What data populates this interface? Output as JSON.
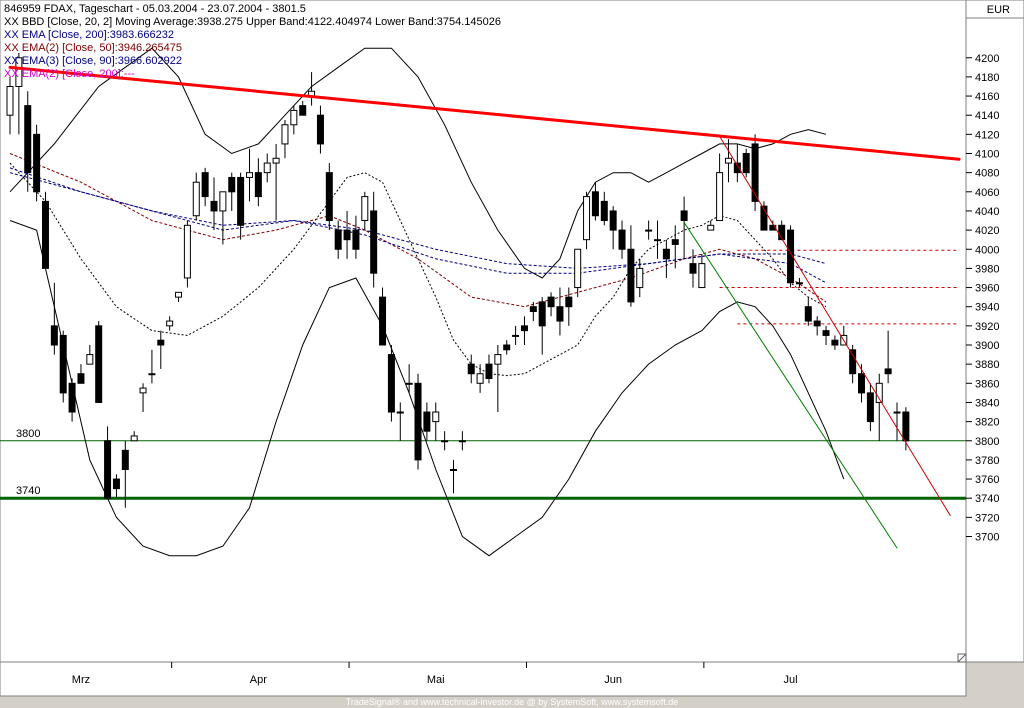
{
  "header": {
    "lines": [
      {
        "text": "846959  FDAX, Tageschart - 05.03.2004 - 23.07.2004 - 3801.5",
        "color": "#000000"
      },
      {
        "text": "XX BBD [Close, 20, 2] Moving Average:3938.275 Upper Band:4122.404974 Lower Band:3754.145026",
        "color": "#000000"
      },
      {
        "text": "XX EMA [Close, 200]:3983.666232",
        "color": "#000080"
      },
      {
        "text": "XX EMA(2) [Close, 50]:3946.265475",
        "color": "#800000"
      },
      {
        "text": "XX EMA(3) [Close, 90]:3966.602922",
        "color": "#000080"
      },
      {
        "text": "XX EMA(2) [Close, 200]:---",
        "color": "#cc00cc"
      }
    ]
  },
  "currency": "EUR",
  "footer": "TradeSignal® and www.technical-investor.de @ by  SystemSoft, www.systemsoft.de",
  "chart_data": {
    "type": "candlestick",
    "ylim": [
      3680,
      4230
    ],
    "y_ticks": [
      3700,
      3720,
      3740,
      3760,
      3780,
      3800,
      3820,
      3840,
      3860,
      3880,
      3900,
      3920,
      3940,
      3960,
      3980,
      4000,
      4020,
      4040,
      4060,
      4080,
      4100,
      4120,
      4140,
      4160,
      4180,
      4200
    ],
    "x_labels": [
      {
        "label": "Mrz",
        "bar": 8
      },
      {
        "label": "Apr",
        "bar": 28
      },
      {
        "label": "Mai",
        "bar": 48
      },
      {
        "label": "Jun",
        "bar": 68
      },
      {
        "label": "Jul",
        "bar": 88
      }
    ],
    "month_boundaries": [
      18,
      38,
      58,
      78
    ],
    "horizontal_lines": [
      {
        "value": 3800,
        "label": "3800",
        "color": "#006400",
        "width": 1
      },
      {
        "value": 3740,
        "label": "3740",
        "color": "#006400",
        "width": 3
      }
    ],
    "dashed_levels": [
      {
        "value": 3999,
        "from_bar": 82,
        "to_bar": 107
      },
      {
        "value": 3960,
        "from_bar": 80,
        "to_bar": 107
      },
      {
        "value": 3922,
        "from_bar": 82,
        "to_bar": 107
      }
    ],
    "trendlines": [
      {
        "from": [
          0,
          4190
        ],
        "to": [
          107,
          4094
        ],
        "color": "#ff0000",
        "width": 3
      },
      {
        "from": [
          80,
          4118
        ],
        "to": [
          106,
          3722
        ],
        "color": "#cc0000",
        "width": 1
      },
      {
        "from": [
          76,
          4028
        ],
        "to": [
          100,
          3688
        ],
        "color": "#008000",
        "width": 1
      }
    ],
    "candles": [
      [
        4140,
        4180,
        4120,
        4170
      ],
      [
        4170,
        4205,
        4120,
        4200
      ],
      [
        4150,
        4165,
        4060,
        4080
      ],
      [
        4120,
        4130,
        4050,
        4060
      ],
      [
        4050,
        4060,
        3980,
        3980
      ],
      [
        3920,
        3965,
        3890,
        3900
      ],
      [
        3910,
        3915,
        3840,
        3850
      ],
      [
        3860,
        3865,
        3820,
        3830
      ],
      [
        3870,
        3880,
        3860,
        3860
      ],
      [
        3880,
        3900,
        3880,
        3890
      ],
      [
        3920,
        3925,
        3840,
        3840
      ],
      [
        3800,
        3815,
        3740,
        3740
      ],
      [
        3760,
        3765,
        3740,
        3750
      ],
      [
        3790,
        3800,
        3730,
        3770
      ],
      [
        3800,
        3810,
        3800,
        3805
      ],
      [
        3850,
        3860,
        3830,
        3855
      ],
      [
        3870,
        3895,
        3860,
        3870
      ],
      [
        3905,
        3915,
        3875,
        3900
      ],
      [
        3920,
        3930,
        3915,
        3925
      ],
      [
        3950,
        3955,
        3945,
        3955
      ],
      [
        3970,
        4030,
        3960,
        4025
      ],
      [
        4035,
        4080,
        4030,
        4070
      ],
      [
        4080,
        4085,
        4045,
        4055
      ],
      [
        4050,
        4075,
        4020,
        4040
      ],
      [
        4040,
        4060,
        4005,
        4060
      ],
      [
        4075,
        4080,
        4040,
        4060
      ],
      [
        4075,
        4080,
        4010,
        4025
      ],
      [
        4075,
        4105,
        4050,
        4080
      ],
      [
        4080,
        4095,
        4045,
        4055
      ],
      [
        4080,
        4100,
        4070,
        4090
      ],
      [
        4090,
        4110,
        4030,
        4095
      ],
      [
        4110,
        4135,
        4095,
        4130
      ],
      [
        4130,
        4150,
        4120,
        4145
      ],
      [
        4150,
        4155,
        4140,
        4140
      ],
      [
        4160,
        4185,
        4150,
        4165
      ],
      [
        4140,
        4150,
        4100,
        4110
      ],
      [
        4080,
        4090,
        4020,
        4030
      ],
      [
        4020,
        4030,
        3990,
        4000
      ],
      [
        4020,
        4040,
        3990,
        4010
      ],
      [
        4020,
        4035,
        3990,
        4000
      ],
      [
        4030,
        4060,
        4020,
        4055
      ],
      [
        4040,
        4060,
        3960,
        3975
      ],
      [
        3950,
        3960,
        3900,
        3900
      ],
      [
        3890,
        3900,
        3820,
        3830
      ],
      [
        3830,
        3840,
        3800,
        3830
      ],
      [
        3860,
        3880,
        3850,
        3860
      ],
      [
        3860,
        3870,
        3770,
        3780
      ],
      [
        3830,
        3840,
        3800,
        3810
      ],
      [
        3820,
        3840,
        3800,
        3830
      ],
      [
        3800,
        3810,
        3790,
        3800
      ],
      [
        3770,
        3780,
        3745,
        3770
      ],
      [
        3800,
        3810,
        3790,
        3800
      ],
      [
        3880,
        3890,
        3860,
        3870
      ],
      [
        3860,
        3880,
        3850,
        3870
      ],
      [
        3880,
        3890,
        3860,
        3865
      ],
      [
        3880,
        3900,
        3830,
        3890
      ],
      [
        3900,
        3905,
        3890,
        3895
      ],
      [
        3910,
        3920,
        3900,
        3910
      ],
      [
        3920,
        3930,
        3900,
        3915
      ],
      [
        3940,
        3945,
        3925,
        3935
      ],
      [
        3945,
        3950,
        3890,
        3920
      ],
      [
        3950,
        3955,
        3930,
        3940
      ],
      [
        3940,
        3960,
        3910,
        3925
      ],
      [
        3950,
        3960,
        3920,
        3940
      ],
      [
        3960,
        4000,
        3950,
        4000
      ],
      [
        4010,
        4060,
        4000,
        4055
      ],
      [
        4060,
        4070,
        4030,
        4035
      ],
      [
        4050,
        4060,
        4025,
        4030
      ],
      [
        4040,
        4045,
        4000,
        4020
      ],
      [
        4020,
        4030,
        3990,
        4000
      ],
      [
        4000,
        4025,
        3940,
        3945
      ],
      [
        3960,
        3990,
        3950,
        3980
      ],
      [
        4020,
        4030,
        4010,
        4020
      ],
      [
        4010,
        4030,
        3990,
        4010
      ],
      [
        4000,
        4010,
        3970,
        3990
      ],
      [
        4010,
        4025,
        3980,
        4005
      ],
      [
        4040,
        4055,
        3990,
        4030
      ],
      [
        3985,
        4000,
        3960,
        3975
      ],
      [
        3960,
        3995,
        3960,
        3985
      ],
      [
        4020,
        4030,
        4020,
        4025
      ],
      [
        4030,
        4100,
        4030,
        4080
      ],
      [
        4090,
        4115,
        4070,
        4095
      ],
      [
        4090,
        4110,
        4070,
        4080
      ],
      [
        4100,
        4105,
        4075,
        4080
      ],
      [
        4110,
        4120,
        4040,
        4050
      ],
      [
        4045,
        4050,
        4020,
        4020
      ],
      [
        4025,
        4030,
        4020,
        4020
      ],
      [
        4025,
        4030,
        4010,
        4010
      ],
      [
        4020,
        4025,
        3960,
        3965
      ],
      [
        3965,
        3970,
        3960,
        3965
      ],
      [
        3940,
        3950,
        3920,
        3925
      ],
      [
        3925,
        3930,
        3910,
        3920
      ],
      [
        3915,
        3920,
        3900,
        3910
      ],
      [
        3905,
        3910,
        3895,
        3900
      ],
      [
        3900,
        3920,
        3900,
        3910
      ],
      [
        3895,
        3900,
        3860,
        3870
      ],
      [
        3870,
        3880,
        3840,
        3850
      ],
      [
        3850,
        3860,
        3810,
        3820
      ],
      [
        3840,
        3870,
        3800,
        3860
      ],
      [
        3875,
        3915,
        3860,
        3870
      ],
      [
        3830,
        3840,
        3800,
        3830
      ],
      [
        3830,
        3835,
        3790,
        3800
      ]
    ],
    "bollinger_upper": [
      [
        0,
        4060
      ],
      [
        5,
        4110
      ],
      [
        10,
        4170
      ],
      [
        13,
        4190
      ],
      [
        16,
        4210
      ],
      [
        19,
        4180
      ],
      [
        22,
        4120
      ],
      [
        25,
        4100
      ],
      [
        28,
        4110
      ],
      [
        31,
        4140
      ],
      [
        34,
        4170
      ],
      [
        37,
        4190
      ],
      [
        40,
        4210
      ],
      [
        43,
        4210
      ],
      [
        46,
        4180
      ],
      [
        49,
        4130
      ],
      [
        52,
        4070
      ],
      [
        55,
        4020
      ],
      [
        58,
        3980
      ],
      [
        60,
        3970
      ],
      [
        62,
        3990
      ],
      [
        64,
        4040
      ],
      [
        66,
        4070
      ],
      [
        68,
        4080
      ],
      [
        70,
        4080
      ],
      [
        72,
        4070
      ],
      [
        74,
        4080
      ],
      [
        76,
        4090
      ],
      [
        78,
        4100
      ],
      [
        80,
        4110
      ],
      [
        82,
        4110
      ],
      [
        84,
        4105
      ],
      [
        86,
        4110
      ],
      [
        88,
        4120
      ],
      [
        90,
        4125
      ],
      [
        92,
        4120
      ]
    ],
    "bollinger_lower": [
      [
        0,
        4030
      ],
      [
        3,
        4020
      ],
      [
        6,
        3900
      ],
      [
        9,
        3780
      ],
      [
        12,
        3720
      ],
      [
        15,
        3690
      ],
      [
        18,
        3680
      ],
      [
        21,
        3680
      ],
      [
        24,
        3690
      ],
      [
        27,
        3730
      ],
      [
        30,
        3820
      ],
      [
        33,
        3900
      ],
      [
        36,
        3960
      ],
      [
        39,
        3970
      ],
      [
        42,
        3920
      ],
      [
        45,
        3850
      ],
      [
        48,
        3770
      ],
      [
        51,
        3700
      ],
      [
        54,
        3680
      ],
      [
        57,
        3700
      ],
      [
        60,
        3720
      ],
      [
        63,
        3760
      ],
      [
        66,
        3810
      ],
      [
        69,
        3850
      ],
      [
        72,
        3880
      ],
      [
        75,
        3900
      ],
      [
        78,
        3915
      ],
      [
        80,
        3935
      ],
      [
        82,
        3945
      ],
      [
        84,
        3940
      ],
      [
        86,
        3920
      ],
      [
        88,
        3890
      ],
      [
        90,
        3850
      ],
      [
        92,
        3810
      ],
      [
        94,
        3760
      ]
    ],
    "bollinger_mid": [
      [
        0,
        4090
      ],
      [
        4,
        4050
      ],
      [
        8,
        3990
      ],
      [
        12,
        3940
      ],
      [
        16,
        3915
      ],
      [
        20,
        3910
      ],
      [
        24,
        3930
      ],
      [
        28,
        3960
      ],
      [
        32,
        4000
      ],
      [
        36,
        4050
      ],
      [
        38,
        4075
      ],
      [
        40,
        4080
      ],
      [
        42,
        4070
      ],
      [
        44,
        4030
      ],
      [
        46,
        3990
      ],
      [
        48,
        3950
      ],
      [
        50,
        3905
      ],
      [
        52,
        3880
      ],
      [
        54,
        3870
      ],
      [
        56,
        3868
      ],
      [
        58,
        3870
      ],
      [
        60,
        3880
      ],
      [
        62,
        3890
      ],
      [
        64,
        3900
      ],
      [
        66,
        3930
      ],
      [
        68,
        3950
      ],
      [
        70,
        3980
      ],
      [
        72,
        4000
      ],
      [
        74,
        4010
      ],
      [
        76,
        4020
      ],
      [
        78,
        4025
      ],
      [
        80,
        4035
      ],
      [
        82,
        4030
      ],
      [
        84,
        4010
      ],
      [
        86,
        3990
      ],
      [
        88,
        3965
      ],
      [
        90,
        3950
      ],
      [
        92,
        3940
      ]
    ],
    "ema_200": [
      [
        0,
        4080
      ],
      [
        8,
        4060
      ],
      [
        16,
        4040
      ],
      [
        24,
        4025
      ],
      [
        32,
        4030
      ],
      [
        40,
        4020
      ],
      [
        48,
        4000
      ],
      [
        56,
        3985
      ],
      [
        64,
        3980
      ],
      [
        72,
        3985
      ],
      [
        80,
        3995
      ],
      [
        88,
        3995
      ],
      [
        92,
        3985
      ]
    ],
    "ema2_50": [
      [
        0,
        4100
      ],
      [
        8,
        4070
      ],
      [
        16,
        4030
      ],
      [
        24,
        4010
      ],
      [
        30,
        4020
      ],
      [
        36,
        4035
      ],
      [
        40,
        4020
      ],
      [
        46,
        3990
      ],
      [
        52,
        3950
      ],
      [
        58,
        3940
      ],
      [
        64,
        3955
      ],
      [
        70,
        3970
      ],
      [
        76,
        3990
      ],
      [
        80,
        4000
      ],
      [
        84,
        3990
      ],
      [
        88,
        3970
      ],
      [
        92,
        3945
      ]
    ],
    "ema3_90": [
      [
        0,
        4085
      ],
      [
        8,
        4060
      ],
      [
        16,
        4040
      ],
      [
        24,
        4020
      ],
      [
        32,
        4030
      ],
      [
        40,
        4015
      ],
      [
        48,
        3990
      ],
      [
        56,
        3975
      ],
      [
        64,
        3975
      ],
      [
        72,
        3985
      ],
      [
        80,
        3995
      ],
      [
        88,
        3985
      ],
      [
        92,
        3965
      ]
    ]
  }
}
